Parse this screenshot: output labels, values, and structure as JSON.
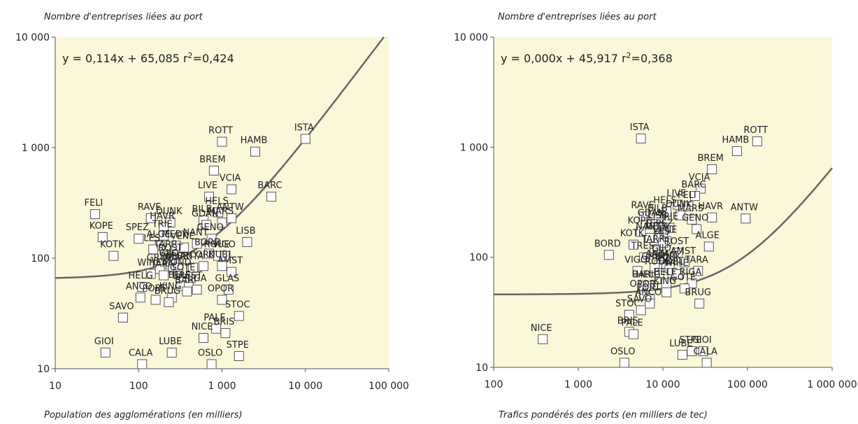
{
  "chart_data": [
    {
      "type": "scatter",
      "title": "Nombre d'entreprises liées au port",
      "xlabel": "Population des agglomérations (en milliers)",
      "ylabel": "Nombre d'entreprises liées au port",
      "x_scale": "log",
      "y_scale": "log",
      "xlim": [
        10,
        100000
      ],
      "ylim": [
        10,
        10000
      ],
      "x_ticks": [
        "10",
        "100",
        "1 000",
        "10 000",
        "100 000"
      ],
      "y_ticks": [
        "10",
        "100",
        "1 000",
        "10 000"
      ],
      "equation": "y = 0,114x + 65,085",
      "r2_label": "r",
      "r2_sup": "2",
      "r2_value": "=0,424",
      "fit": {
        "slope": 0.114,
        "intercept": 65.085
      },
      "grid": false,
      "points": [
        {
          "label": "ISTA",
          "x": 10000,
          "y": 1200
        },
        {
          "label": "ROTT",
          "x": 1000,
          "y": 1130
        },
        {
          "label": "HAMB",
          "x": 2500,
          "y": 920
        },
        {
          "label": "BREM",
          "x": 800,
          "y": 620
        },
        {
          "label": "VCIA",
          "x": 1300,
          "y": 420
        },
        {
          "label": "LIVE",
          "x": 700,
          "y": 360
        },
        {
          "label": "BARC",
          "x": 3900,
          "y": 360
        },
        {
          "label": "FELI",
          "x": 30,
          "y": 250
        },
        {
          "label": "HELS",
          "x": 900,
          "y": 260
        },
        {
          "label": "ANTW",
          "x": 1300,
          "y": 230
        },
        {
          "label": "RAVE",
          "x": 140,
          "y": 230
        },
        {
          "label": "DUNK",
          "x": 240,
          "y": 210
        },
        {
          "label": "BILB",
          "x": 600,
          "y": 220
        },
        {
          "label": "MARS",
          "x": 1000,
          "y": 210
        },
        {
          "label": "HAVR",
          "x": 200,
          "y": 190
        },
        {
          "label": "GDAN",
          "x": 650,
          "y": 200
        },
        {
          "label": "TRIE",
          "x": 200,
          "y": 160
        },
        {
          "label": "SPEZ",
          "x": 100,
          "y": 150
        },
        {
          "label": "KOPE",
          "x": 37,
          "y": 155
        },
        {
          "label": "LISB",
          "x": 2000,
          "y": 140
        },
        {
          "label": "ALGE",
          "x": 180,
          "y": 130
        },
        {
          "label": "MEDY",
          "x": 280,
          "y": 130
        },
        {
          "label": "NANT",
          "x": 500,
          "y": 135
        },
        {
          "label": "GENO",
          "x": 750,
          "y": 150
        },
        {
          "label": "VENE",
          "x": 350,
          "y": 125
        },
        {
          "label": "LES",
          "x": 150,
          "y": 120
        },
        {
          "label": "KOTK",
          "x": 50,
          "y": 105
        },
        {
          "label": "TARR",
          "x": 220,
          "y": 105
        },
        {
          "label": "ROST",
          "x": 250,
          "y": 98
        },
        {
          "label": "BORD",
          "x": 700,
          "y": 110
        },
        {
          "label": "ROUE",
          "x": 900,
          "y": 105
        },
        {
          "label": "VIGO",
          "x": 1100,
          "y": 105
        },
        {
          "label": "AMST",
          "x": 1300,
          "y": 75
        },
        {
          "label": "GIJO",
          "x": 240,
          "y": 88
        },
        {
          "label": "GRIM",
          "x": 180,
          "y": 80
        },
        {
          "label": "SOUT",
          "x": 260,
          "y": 82
        },
        {
          "label": "ABER",
          "x": 300,
          "y": 82
        },
        {
          "label": "ANTA",
          "x": 450,
          "y": 82
        },
        {
          "label": "DUBL",
          "x": 1000,
          "y": 85
        },
        {
          "label": "CORK",
          "x": 600,
          "y": 85
        },
        {
          "label": "WIHE",
          "x": 140,
          "y": 72
        },
        {
          "label": "TARA",
          "x": 200,
          "y": 70
        },
        {
          "label": "MOND",
          "x": 300,
          "y": 72
        },
        {
          "label": "GOTE",
          "x": 350,
          "y": 65
        },
        {
          "label": "HELG",
          "x": 110,
          "y": 55
        },
        {
          "label": "BELF",
          "x": 320,
          "y": 56
        },
        {
          "label": "BREST",
          "x": 400,
          "y": 55
        },
        {
          "label": "RIGA",
          "x": 500,
          "y": 52
        },
        {
          "label": "BARI",
          "x": 380,
          "y": 50
        },
        {
          "label": "GLAS",
          "x": 1200,
          "y": 52
        },
        {
          "label": "ANCO",
          "x": 105,
          "y": 44
        },
        {
          "label": "PORT",
          "x": 160,
          "y": 42
        },
        {
          "label": "KING",
          "x": 250,
          "y": 44
        },
        {
          "label": "BRUG",
          "x": 230,
          "y": 40
        },
        {
          "label": "OPOR",
          "x": 1000,
          "y": 42
        },
        {
          "label": "SAVO",
          "x": 65,
          "y": 29
        },
        {
          "label": "STOC",
          "x": 1600,
          "y": 30
        },
        {
          "label": "PALE",
          "x": 850,
          "y": 23
        },
        {
          "label": "NICE",
          "x": 600,
          "y": 19
        },
        {
          "label": "BRIS",
          "x": 1100,
          "y": 21
        },
        {
          "label": "GIOI",
          "x": 40,
          "y": 14
        },
        {
          "label": "CALA",
          "x": 110,
          "y": 11
        },
        {
          "label": "LUBE",
          "x": 250,
          "y": 14
        },
        {
          "label": "OSLO",
          "x": 750,
          "y": 11
        },
        {
          "label": "STPE",
          "x": 1600,
          "y": 13
        }
      ]
    },
    {
      "type": "scatter",
      "title": "Nombre d'entreprises liées au port",
      "xlabel": "Trafics pondérés des ports (en milliers de tec)",
      "ylabel": "Nombre d'entreprises liées au port",
      "x_scale": "log",
      "y_scale": "log",
      "xlim": [
        100,
        1000000
      ],
      "ylim": [
        10,
        10000
      ],
      "x_ticks": [
        "100",
        "1 000",
        "10 000",
        "100 000",
        "1 000 000"
      ],
      "y_ticks": [
        "10",
        "100",
        "1 000",
        "10 000"
      ],
      "equation": "y = 0,000x + 45,917",
      "r2_label": "r",
      "r2_sup": "2",
      "r2_value": "=0,368",
      "fit": {
        "slope": 0.0006,
        "intercept": 45.917
      },
      "grid": false,
      "points": [
        {
          "label": "ISTA",
          "x": 5500,
          "y": 1200
        },
        {
          "label": "ROTT",
          "x": 130000,
          "y": 1130
        },
        {
          "label": "HAMB",
          "x": 75000,
          "y": 920
        },
        {
          "label": "BREM",
          "x": 38000,
          "y": 630
        },
        {
          "label": "VCIA",
          "x": 28000,
          "y": 420
        },
        {
          "label": "BARC",
          "x": 24000,
          "y": 360
        },
        {
          "label": "LIVE",
          "x": 15000,
          "y": 300
        },
        {
          "label": "FELI",
          "x": 20000,
          "y": 290
        },
        {
          "label": "HELS",
          "x": 11000,
          "y": 260
        },
        {
          "label": "DUNK",
          "x": 16000,
          "y": 240
        },
        {
          "label": "HAVR",
          "x": 38000,
          "y": 230
        },
        {
          "label": "ANTW",
          "x": 95000,
          "y": 225
        },
        {
          "label": "RAVE",
          "x": 6000,
          "y": 235
        },
        {
          "label": "BILB",
          "x": 9000,
          "y": 220
        },
        {
          "label": "GDAN",
          "x": 7500,
          "y": 200
        },
        {
          "label": "MARS",
          "x": 22000,
          "y": 220
        },
        {
          "label": "LISB",
          "x": 9000,
          "y": 190
        },
        {
          "label": "TRIE",
          "x": 12000,
          "y": 185
        },
        {
          "label": "GENO",
          "x": 25000,
          "y": 180
        },
        {
          "label": "KOPE",
          "x": 5500,
          "y": 170
        },
        {
          "label": "SPEZ",
          "x": 10000,
          "y": 160
        },
        {
          "label": "NANT",
          "x": 7000,
          "y": 150
        },
        {
          "label": "MEDY",
          "x": 9000,
          "y": 150
        },
        {
          "label": "VENE",
          "x": 11000,
          "y": 140
        },
        {
          "label": "LES",
          "x": 10000,
          "y": 135
        },
        {
          "label": "KOTK",
          "x": 4500,
          "y": 130
        },
        {
          "label": "ALGE",
          "x": 35000,
          "y": 125
        },
        {
          "label": "TARR",
          "x": 8000,
          "y": 115
        },
        {
          "label": "ROST",
          "x": 15000,
          "y": 110
        },
        {
          "label": "BORD",
          "x": 2300,
          "y": 105
        },
        {
          "label": "TRES",
          "x": 6000,
          "y": 100
        },
        {
          "label": "GIJO",
          "x": 10000,
          "y": 95
        },
        {
          "label": "AMST",
          "x": 18000,
          "y": 90
        },
        {
          "label": "ANTA",
          "x": 9000,
          "y": 85
        },
        {
          "label": "SOUT",
          "x": 11000,
          "y": 82
        },
        {
          "label": "GRIM",
          "x": 8000,
          "y": 80
        },
        {
          "label": "CORK",
          "x": 12000,
          "y": 80
        },
        {
          "label": "VIGO",
          "x": 5000,
          "y": 75
        },
        {
          "label": "ROUE",
          "x": 9000,
          "y": 72
        },
        {
          "label": "DUBL",
          "x": 13000,
          "y": 72
        },
        {
          "label": "WIHE",
          "x": 15000,
          "y": 70
        },
        {
          "label": "TARA",
          "x": 26000,
          "y": 75
        },
        {
          "label": "BELF",
          "x": 11000,
          "y": 58
        },
        {
          "label": "RIGA",
          "x": 22000,
          "y": 58
        },
        {
          "label": "BARI",
          "x": 6000,
          "y": 55
        },
        {
          "label": "HELG",
          "x": 7000,
          "y": 55
        },
        {
          "label": "GOTE",
          "x": 18000,
          "y": 52
        },
        {
          "label": "KING",
          "x": 11000,
          "y": 48
        },
        {
          "label": "OPOR",
          "x": 6000,
          "y": 45
        },
        {
          "label": "PORT",
          "x": 7000,
          "y": 42
        },
        {
          "label": "ANCO",
          "x": 7000,
          "y": 38
        },
        {
          "label": "BRUG",
          "x": 27000,
          "y": 38
        },
        {
          "label": "STOC",
          "x": 4000,
          "y": 30
        },
        {
          "label": "SAVO",
          "x": 5500,
          "y": 33
        },
        {
          "label": "NICE",
          "x": 380,
          "y": 18
        },
        {
          "label": "BRIS",
          "x": 4000,
          "y": 21
        },
        {
          "label": "PALE",
          "x": 4500,
          "y": 20
        },
        {
          "label": "LUBE",
          "x": 17000,
          "y": 13
        },
        {
          "label": "STPE",
          "x": 22000,
          "y": 14
        },
        {
          "label": "GIOI",
          "x": 30000,
          "y": 14
        },
        {
          "label": "CALA",
          "x": 33000,
          "y": 11
        },
        {
          "label": "OSLO",
          "x": 3500,
          "y": 11
        }
      ]
    }
  ]
}
